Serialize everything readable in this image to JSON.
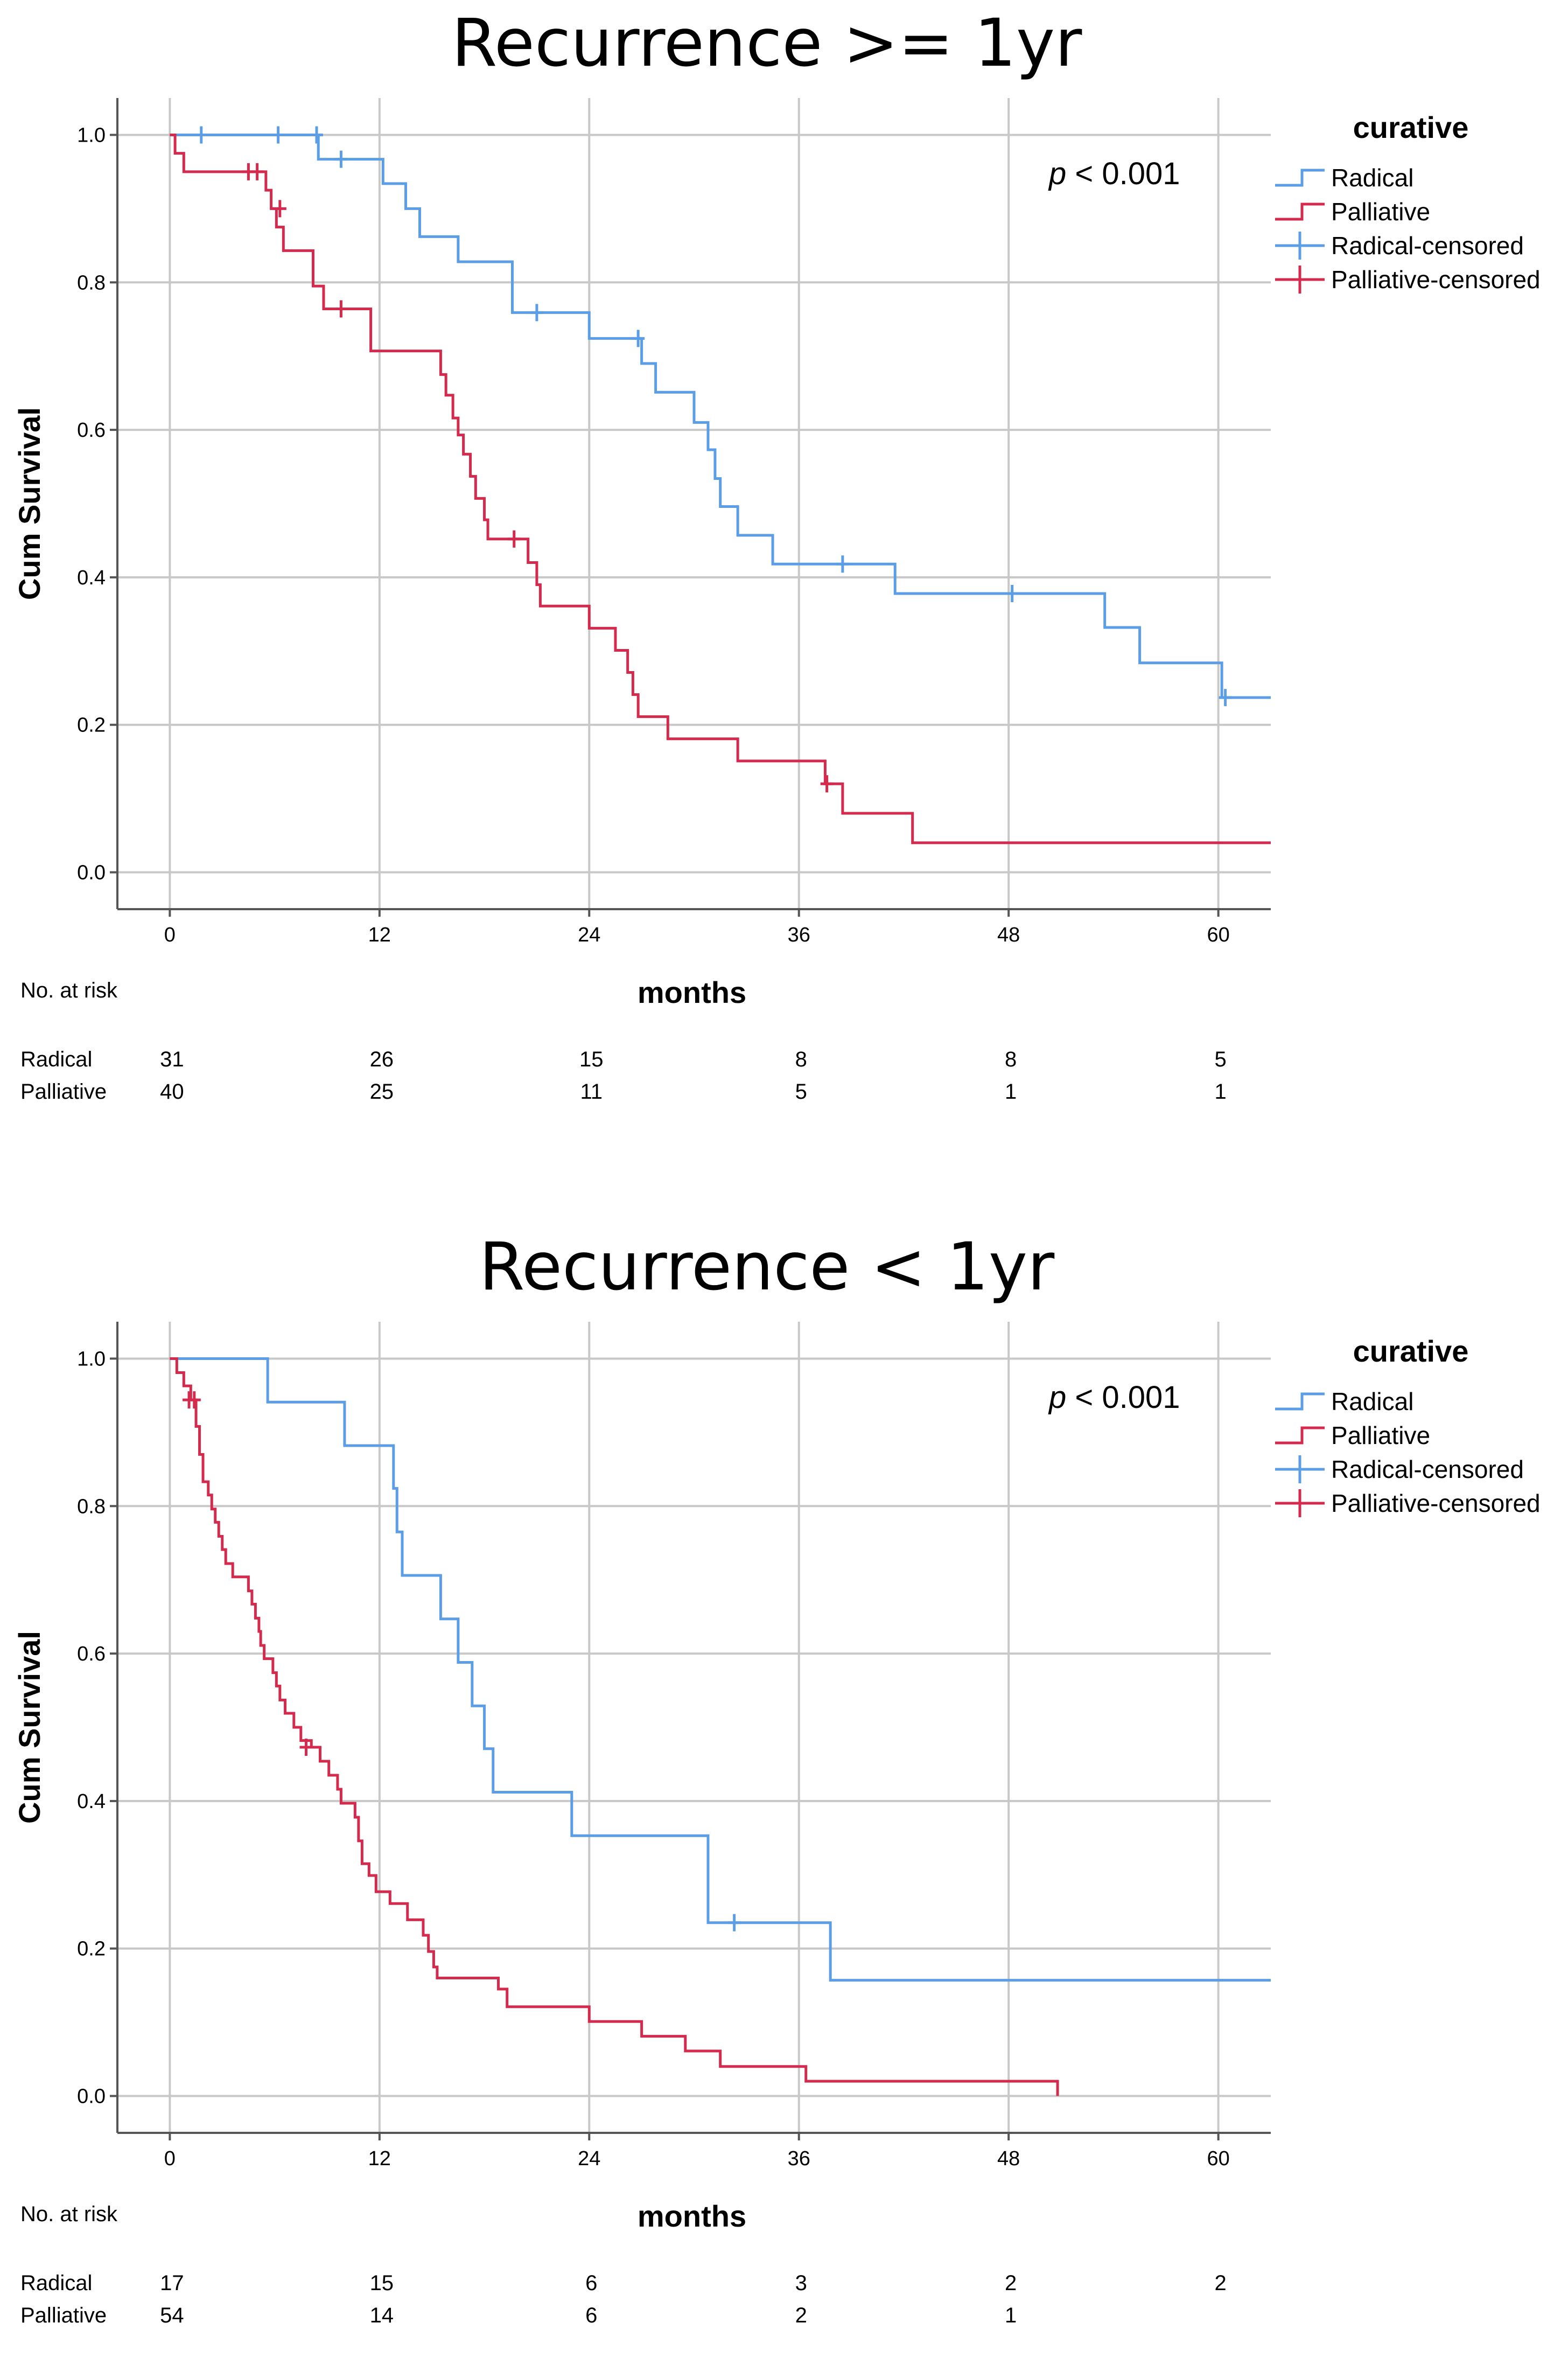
{
  "chart_data": [
    {
      "type": "line",
      "subtype": "kaplan-meier",
      "title": "Recurrence >= 1yr",
      "xlabel": "months",
      "ylabel": "Cum Survival",
      "xlim": [
        -3,
        63
      ],
      "ylim": [
        -0.05,
        1.05
      ],
      "xticks": [
        0,
        12,
        24,
        36,
        48,
        60
      ],
      "yticks": [
        "0.0",
        "0.2",
        "0.4",
        "0.6",
        "0.8",
        "1.0"
      ],
      "grid": true,
      "annotation": {
        "p_italic": "p",
        "rest": " < 0.001"
      },
      "legend": {
        "title": "curative",
        "placement": "right",
        "entries": [
          "Radical",
          "Palliative",
          "Radical-censored",
          "Palliative-censored"
        ]
      },
      "series": [
        {
          "name": "Radical",
          "color": "#5b9ee6",
          "steps": [
            [
              0,
              1.0
            ],
            [
              8.5,
              0.967
            ],
            [
              12.2,
              0.934
            ],
            [
              13.5,
              0.9
            ],
            [
              14.3,
              0.862
            ],
            [
              16.5,
              0.828
            ],
            [
              19.6,
              0.759
            ],
            [
              24,
              0.724
            ],
            [
              27,
              0.69
            ],
            [
              27.8,
              0.651
            ],
            [
              30,
              0.61
            ],
            [
              30.8,
              0.573
            ],
            [
              31.2,
              0.534
            ],
            [
              31.5,
              0.496
            ],
            [
              32.5,
              0.457
            ],
            [
              34.5,
              0.418
            ],
            [
              41.5,
              0.378
            ],
            [
              53.5,
              0.332
            ],
            [
              55.5,
              0.284
            ],
            [
              60.2,
              0.237
            ]
          ],
          "end": 63,
          "censored": [
            [
              1.8,
              1.0
            ],
            [
              6.2,
              1.0
            ],
            [
              8.4,
              1.0
            ],
            [
              9.8,
              0.967
            ],
            [
              21,
              0.759
            ],
            [
              26.8,
              0.724
            ],
            [
              38.5,
              0.418
            ],
            [
              48.2,
              0.378
            ],
            [
              60.4,
              0.237
            ]
          ]
        },
        {
          "name": "Palliative",
          "color": "#d42a4d",
          "steps": [
            [
              0,
              1.0
            ],
            [
              0.3,
              0.975
            ],
            [
              0.8,
              0.95
            ],
            [
              5.5,
              0.925
            ],
            [
              5.8,
              0.9
            ],
            [
              6.1,
              0.875
            ],
            [
              6.5,
              0.843
            ],
            [
              8.2,
              0.795
            ],
            [
              8.8,
              0.764
            ],
            [
              11.5,
              0.707
            ],
            [
              15.5,
              0.675
            ],
            [
              15.8,
              0.647
            ],
            [
              16.2,
              0.616
            ],
            [
              16.5,
              0.593
            ],
            [
              16.8,
              0.567
            ],
            [
              17.2,
              0.537
            ],
            [
              17.5,
              0.507
            ],
            [
              18,
              0.478
            ],
            [
              18.2,
              0.452
            ],
            [
              20.5,
              0.42
            ],
            [
              21,
              0.39
            ],
            [
              21.2,
              0.361
            ],
            [
              24,
              0.331
            ],
            [
              25.5,
              0.301
            ],
            [
              26.2,
              0.271
            ],
            [
              26.5,
              0.241
            ],
            [
              26.8,
              0.211
            ],
            [
              28.5,
              0.181
            ],
            [
              32.5,
              0.151
            ],
            [
              37.5,
              0.12
            ],
            [
              38.5,
              0.08
            ],
            [
              42.5,
              0.04
            ]
          ],
          "end": 63,
          "censored": [
            [
              4.5,
              0.95
            ],
            [
              5.0,
              0.95
            ],
            [
              6.3,
              0.9
            ],
            [
              9.8,
              0.764
            ],
            [
              19.7,
              0.452
            ],
            [
              37.6,
              0.12
            ]
          ]
        }
      ],
      "risk_table": {
        "heading": "No. at risk",
        "times": [
          0,
          12,
          24,
          36,
          48,
          60
        ],
        "rows": [
          {
            "label": "Radical",
            "values": [
              "31",
              "26",
              "15",
              "8",
              "8",
              "5"
            ]
          },
          {
            "label": "Palliative",
            "values": [
              "40",
              "25",
              "11",
              "5",
              "1",
              "1"
            ]
          }
        ]
      }
    },
    {
      "type": "line",
      "subtype": "kaplan-meier",
      "title": "Recurrence < 1yr",
      "xlabel": "months",
      "ylabel": "Cum Survival",
      "xlim": [
        -3,
        63
      ],
      "ylim": [
        -0.05,
        1.05
      ],
      "xticks": [
        0,
        12,
        24,
        36,
        48,
        60
      ],
      "yticks": [
        "0.0",
        "0.2",
        "0.4",
        "0.6",
        "0.8",
        "1.0"
      ],
      "grid": true,
      "annotation": {
        "p_italic": "p",
        "rest": " < 0.001"
      },
      "legend": {
        "title": "curative",
        "placement": "right",
        "entries": [
          "Radical",
          "Palliative",
          "Radical-censored",
          "Palliative-censored"
        ]
      },
      "series": [
        {
          "name": "Radical",
          "color": "#5b9ee6",
          "steps": [
            [
              0,
              1.0
            ],
            [
              5.6,
              0.941
            ],
            [
              10.0,
              0.882
            ],
            [
              12.8,
              0.824
            ],
            [
              13.0,
              0.765
            ],
            [
              13.3,
              0.706
            ],
            [
              15.5,
              0.647
            ],
            [
              16.5,
              0.588
            ],
            [
              17.3,
              0.529
            ],
            [
              18.0,
              0.471
            ],
            [
              18.5,
              0.412
            ],
            [
              23.0,
              0.353
            ],
            [
              30.8,
              0.235
            ],
            [
              37.8,
              0.157
            ]
          ],
          "end": 63,
          "censored": [
            [
              32.3,
              0.235
            ]
          ]
        },
        {
          "name": "Palliative",
          "color": "#d42a4d",
          "steps": [
            [
              0,
              1.0
            ],
            [
              0.4,
              0.981
            ],
            [
              0.8,
              0.963
            ],
            [
              1.2,
              0.944
            ],
            [
              1.5,
              0.908
            ],
            [
              1.7,
              0.87
            ],
            [
              1.9,
              0.833
            ],
            [
              2.2,
              0.815
            ],
            [
              2.4,
              0.796
            ],
            [
              2.6,
              0.778
            ],
            [
              2.8,
              0.759
            ],
            [
              3.0,
              0.741
            ],
            [
              3.2,
              0.722
            ],
            [
              3.6,
              0.704
            ],
            [
              4.5,
              0.685
            ],
            [
              4.7,
              0.667
            ],
            [
              4.9,
              0.648
            ],
            [
              5.1,
              0.63
            ],
            [
              5.2,
              0.611
            ],
            [
              5.4,
              0.593
            ],
            [
              5.9,
              0.574
            ],
            [
              6.1,
              0.556
            ],
            [
              6.3,
              0.537
            ],
            [
              6.6,
              0.519
            ],
            [
              7.1,
              0.5
            ],
            [
              7.5,
              0.482
            ],
            [
              8.1,
              0.473
            ],
            [
              8.6,
              0.454
            ],
            [
              9.1,
              0.435
            ],
            [
              9.6,
              0.416
            ],
            [
              9.8,
              0.397
            ],
            [
              10.6,
              0.378
            ],
            [
              10.8,
              0.346
            ],
            [
              11.0,
              0.315
            ],
            [
              11.4,
              0.299
            ],
            [
              11.8,
              0.277
            ],
            [
              12.6,
              0.261
            ],
            [
              13.6,
              0.239
            ],
            [
              14.5,
              0.218
            ],
            [
              14.8,
              0.196
            ],
            [
              15.1,
              0.175
            ],
            [
              15.3,
              0.16
            ],
            [
              18.8,
              0.145
            ],
            [
              19.3,
              0.121
            ],
            [
              24.0,
              0.101
            ],
            [
              27.0,
              0.081
            ],
            [
              29.5,
              0.061
            ],
            [
              31.5,
              0.04
            ],
            [
              36.4,
              0.02
            ],
            [
              50.8,
              0.0
            ]
          ],
          "end": 50.8,
          "censored": [
            [
              1.1,
              0.944
            ],
            [
              1.4,
              0.944
            ],
            [
              7.8,
              0.473
            ]
          ]
        }
      ],
      "risk_table": {
        "heading": "No. at risk",
        "times": [
          0,
          12,
          24,
          36,
          48,
          60
        ],
        "rows": [
          {
            "label": "Radical",
            "values": [
              "17",
              "15",
              "6",
              "3",
              "2",
              "2"
            ]
          },
          {
            "label": "Palliative",
            "values": [
              "54",
              "14",
              "6",
              "2",
              "1",
              ""
            ]
          }
        ]
      }
    }
  ]
}
